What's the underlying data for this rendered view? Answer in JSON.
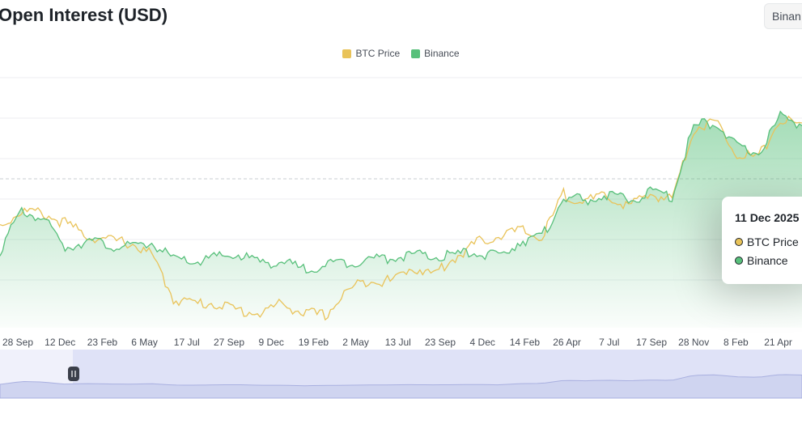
{
  "title": "Open Interest (USD)",
  "exchange_button": "Binan",
  "colors": {
    "btc": "#e9c359",
    "binance": "#58c07b",
    "navigator": "#dfe2f7"
  },
  "tooltip": {
    "date": "11 Dec 2025",
    "rows": [
      {
        "label": "BTC Price",
        "color": "#e9c359"
      },
      {
        "label": "Binance",
        "color": "#58c07b"
      }
    ]
  },
  "chart_data": {
    "type": "line",
    "title": "Open Interest (USD)",
    "legend": [
      "BTC Price",
      "Binance"
    ],
    "legend_position": "top-center",
    "x_ticks": [
      "28 Sep",
      "12 Dec",
      "23 Feb",
      "6 May",
      "17 Jul",
      "27 Sep",
      "9 Dec",
      "19 Feb",
      "2 May",
      "13 Jul",
      "23 Sep",
      "4 Dec",
      "14 Feb",
      "26 Apr",
      "7 Jul",
      "17 Sep",
      "28 Nov",
      "8 Feb",
      "21 Apr"
    ],
    "grid": true,
    "y_axis_labels_visible": false,
    "series": [
      {
        "name": "BTC Price",
        "values": [
          0.42,
          0.48,
          0.47,
          0.43,
          0.38,
          0.36,
          0.35,
          0.3,
          0.12,
          0.1,
          0.1,
          0.07,
          0.06,
          0.1,
          0.06,
          0.05,
          0.15,
          0.2,
          0.19,
          0.25,
          0.22,
          0.29,
          0.35,
          0.38,
          0.4,
          0.37,
          0.55,
          0.52,
          0.54,
          0.5,
          0.55,
          0.53,
          0.82,
          0.85,
          0.72,
          0.7,
          0.86,
          0.83
        ]
      },
      {
        "name": "Binance",
        "values": [
          0.32,
          0.48,
          0.45,
          0.33,
          0.36,
          0.34,
          0.33,
          0.35,
          0.28,
          0.27,
          0.29,
          0.3,
          0.27,
          0.27,
          0.24,
          0.26,
          0.27,
          0.28,
          0.29,
          0.3,
          0.29,
          0.3,
          0.31,
          0.29,
          0.36,
          0.37,
          0.54,
          0.52,
          0.55,
          0.52,
          0.56,
          0.54,
          0.83,
          0.85,
          0.74,
          0.72,
          0.87,
          0.84
        ]
      }
    ]
  }
}
